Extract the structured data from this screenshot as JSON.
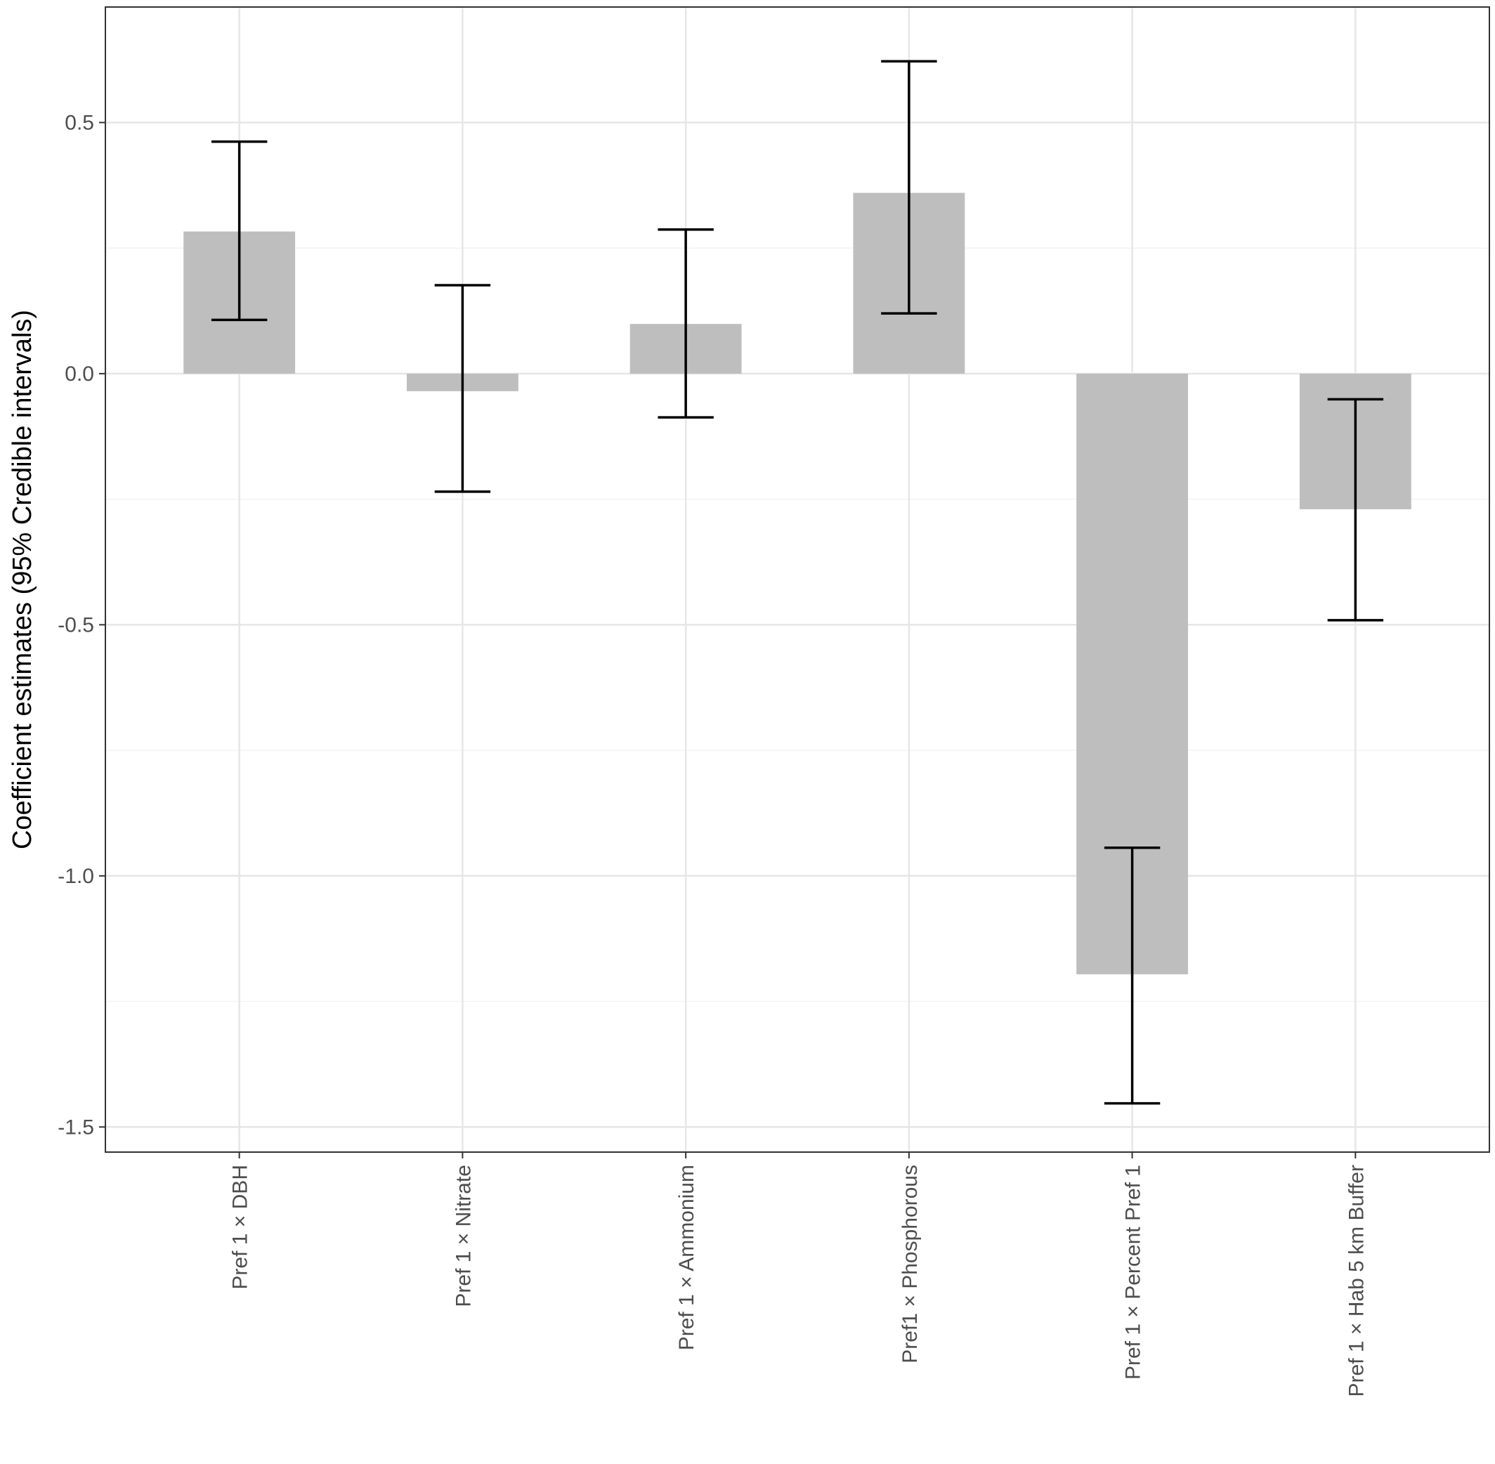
{
  "chart_data": {
    "type": "bar",
    "title": "",
    "xlabel": "",
    "ylabel": "Coefficient estimates (95% Credible intervals)",
    "categories": [
      "Pref 1 × DBH",
      "Pref 1 × Nitrate",
      "Pref 1 × Ammonium",
      "Pref1 × Phosphorous",
      "Pref 1 × Percent Pref 1",
      "Pref 1 × Hab 5 km Buffer"
    ],
    "values": [
      0.283,
      -0.035,
      0.099,
      0.36,
      -1.196,
      -0.27
    ],
    "ci_lower": [
      0.107,
      -0.235,
      -0.087,
      0.12,
      -1.453,
      -0.491
    ],
    "ci_upper": [
      0.462,
      0.176,
      0.287,
      0.622,
      -0.944,
      -0.051
    ],
    "ylim": [
      -1.55,
      0.73
    ],
    "yticks": [
      -1.5,
      -1.0,
      -0.5,
      0.0,
      0.5
    ],
    "ytick_labels": [
      "-1.5",
      "-1.0",
      "-0.5",
      "0.0",
      "0.5"
    ],
    "grid": true,
    "legend": "none",
    "bar_color": "#bebebe",
    "errorbar_color": "#000000"
  }
}
